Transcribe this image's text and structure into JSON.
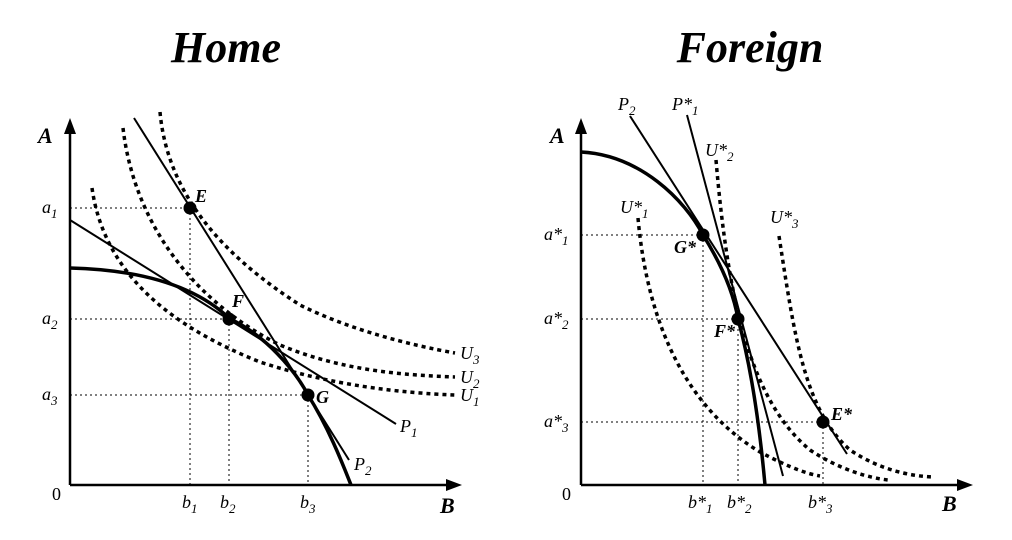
{
  "panels": {
    "home": {
      "title": "Home",
      "axis_y": "A",
      "axis_x": "B",
      "origin": "0",
      "y_ticks": [
        {
          "base": "a",
          "sup": "",
          "sub": "1"
        },
        {
          "base": "a",
          "sup": "",
          "sub": "2"
        },
        {
          "base": "a",
          "sup": "",
          "sub": "3"
        }
      ],
      "x_ticks": [
        {
          "base": "b",
          "sup": "",
          "sub": "1"
        },
        {
          "base": "b",
          "sup": "",
          "sub": "2"
        },
        {
          "base": "b",
          "sup": "",
          "sub": "3"
        }
      ],
      "points": [
        "E",
        "F",
        "G"
      ],
      "price_lines": [
        {
          "base": "P",
          "sub": "1"
        },
        {
          "base": "P",
          "sub": "2"
        }
      ],
      "indifference_curves": [
        {
          "base": "U",
          "sub": "3"
        },
        {
          "base": "U",
          "sub": "2"
        },
        {
          "base": "U",
          "sub": "1"
        }
      ]
    },
    "foreign": {
      "title": "Foreign",
      "axis_y": "A",
      "axis_x": "B",
      "origin": "0",
      "y_ticks": [
        {
          "base": "a*",
          "sub": "1"
        },
        {
          "base": "a*",
          "sub": "2"
        },
        {
          "base": "a*",
          "sub": "3"
        }
      ],
      "x_ticks": [
        {
          "base": "b*",
          "sub": "1"
        },
        {
          "base": "b*",
          "sub": "2"
        },
        {
          "base": "b*",
          "sub": "3"
        }
      ],
      "points": [
        "G*",
        "F*",
        "E*"
      ],
      "price_lines": [
        {
          "base": "P",
          "sub": "2"
        },
        {
          "base": "P*",
          "sub": "1"
        }
      ],
      "indifference_curves": [
        {
          "base": "U*",
          "sub": "1"
        },
        {
          "base": "U*",
          "sub": "2"
        },
        {
          "base": "U*",
          "sub": "3"
        }
      ]
    }
  }
}
